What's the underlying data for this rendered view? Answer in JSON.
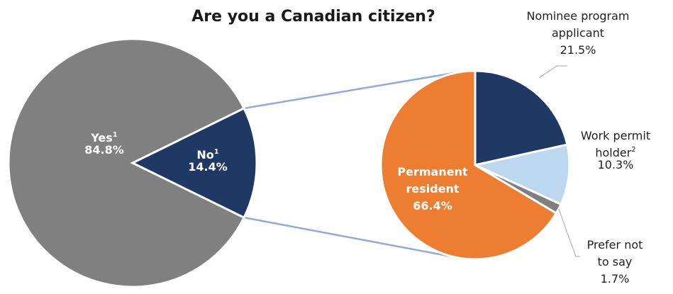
{
  "chart_data": {
    "type": "pie",
    "title": "Are you a Canadian citizen?",
    "main_pie": {
      "slices": [
        {
          "label": "Yes",
          "superscript": "1",
          "value": 84.8,
          "value_label": "84.8%",
          "color": "#808080"
        },
        {
          "label": "No",
          "superscript": "1",
          "value": 14.4,
          "value_label": "14.4%",
          "color": "#203864"
        }
      ]
    },
    "breakdown_pie": {
      "of": "No",
      "slices": [
        {
          "label_lines": [
            "Nominee program",
            "applicant"
          ],
          "value": 21.5,
          "value_label": "21.5%",
          "color": "#203864"
        },
        {
          "label_lines": [
            "Work permit",
            "holder"
          ],
          "superscript": "2",
          "value": 10.3,
          "value_label": "10.3%",
          "color": "#bdd7ee"
        },
        {
          "label_lines": [
            "Prefer not",
            "to say"
          ],
          "value": 1.7,
          "value_label": "1.7%",
          "color": "#7f7f7f"
        },
        {
          "label_lines": [
            "Permanent",
            "resident"
          ],
          "value": 66.4,
          "value_label": "66.4%",
          "color": "#ed7d31"
        }
      ]
    },
    "connector_color": "#8faadc"
  }
}
